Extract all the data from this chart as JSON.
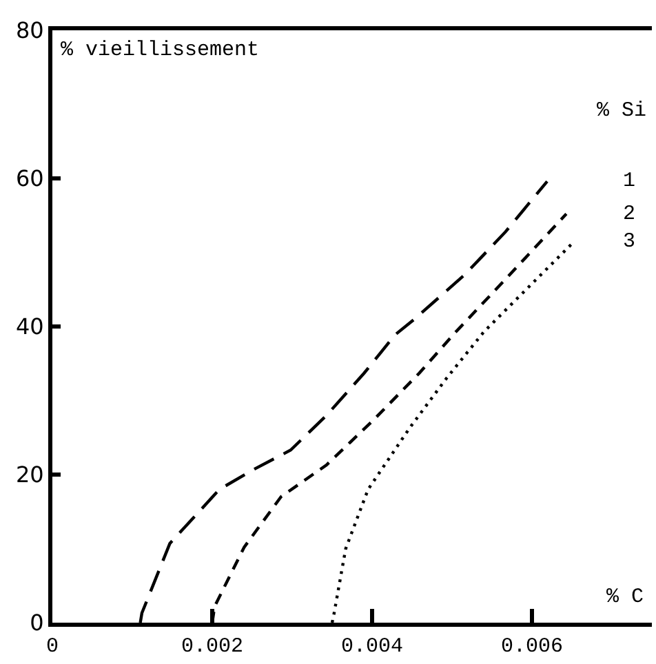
{
  "chart_data": {
    "type": "line",
    "xlabel": "% C",
    "ylabel": "% vieillissement",
    "legend_title": "% Si",
    "xlim": [
      0,
      0.0075
    ],
    "ylim": [
      0,
      80
    ],
    "xticks": [
      0,
      0.002,
      0.004,
      0.006
    ],
    "yticks": [
      0,
      20,
      40,
      60,
      80
    ],
    "legend": false,
    "marker": "none",
    "series": [
      {
        "name": "1",
        "color": "#000000",
        "line_style": "dashed",
        "x": [
          0.0011,
          0.00112,
          0.00147,
          0.00209,
          0.00252,
          0.00298,
          0.00343,
          0.0039,
          0.00429,
          0.00453,
          0.00516,
          0.00567,
          0.00619
        ],
        "values": [
          0,
          1.3,
          10.7,
          18,
          20.7,
          23.3,
          28,
          33.7,
          38.9,
          41,
          47,
          52.8,
          59.6
        ]
      },
      {
        "name": "2",
        "color": "#000000",
        "line_style": "dashed",
        "x": [
          0.002,
          0.00203,
          0.0024,
          0.00286,
          0.00343,
          0.00402,
          0.00459,
          0.00505,
          0.00574,
          0.00643
        ],
        "values": [
          0,
          2.2,
          10.2,
          17,
          21.3,
          27.4,
          33.7,
          39.3,
          47.2,
          55.2
        ]
      },
      {
        "name": "3",
        "color": "#000000",
        "line_style": "dotted",
        "x": [
          0.0035,
          0.00352,
          0.00367,
          0.00395,
          0.00447,
          0.00493,
          0.0054,
          0.00653
        ],
        "values": [
          0,
          1,
          10,
          18,
          26.3,
          33,
          39.3,
          51.5
        ]
      }
    ]
  }
}
